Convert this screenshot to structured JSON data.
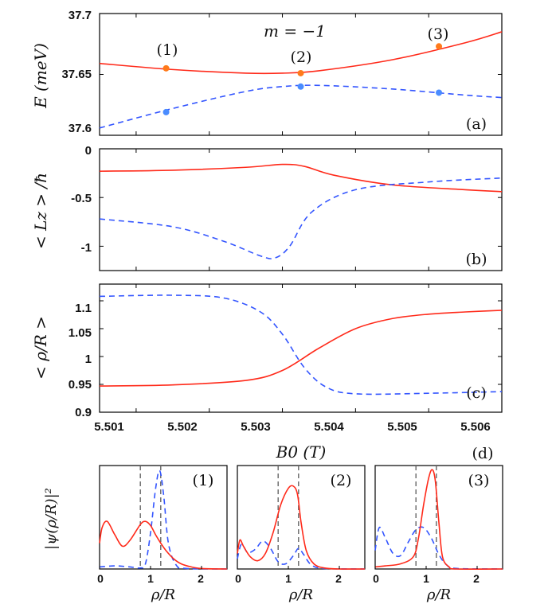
{
  "chart_data": [
    {
      "type": "line",
      "panel": "(a)",
      "ylabel": "E (meV)",
      "title": "m = −1",
      "xlim": [
        5.5005,
        5.506
      ],
      "ylim": [
        37.6,
        37.7
      ],
      "yticks": [
        "37.6",
        "37.65",
        "37.7"
      ],
      "series": [
        {
          "name": "solid",
          "color": "#ff2a1a",
          "style": "solid",
          "x": [
            5.5005,
            5.5015,
            5.5025,
            5.503,
            5.5035,
            5.5045,
            5.5055,
            5.506
          ],
          "y": [
            37.659,
            37.654,
            37.651,
            37.651,
            37.653,
            37.662,
            37.676,
            37.685
          ]
        },
        {
          "name": "dashed",
          "color": "#3355ff",
          "style": "dashed",
          "x": [
            5.5005,
            5.5015,
            5.5025,
            5.503,
            5.5035,
            5.5045,
            5.5055,
            5.506
          ],
          "y": [
            37.606,
            37.622,
            37.636,
            37.64,
            37.641,
            37.638,
            37.633,
            37.631
          ]
        }
      ],
      "markers": [
        {
          "label": "(1)",
          "x": 5.50141,
          "y_solid": 37.655,
          "y_dashed": 37.619
        },
        {
          "label": "(2)",
          "x": 5.50325,
          "y_solid": 37.651,
          "y_dashed": 37.64
        },
        {
          "label": "(3)",
          "x": 5.50514,
          "y_solid": 37.673,
          "y_dashed": 37.635
        }
      ]
    },
    {
      "type": "line",
      "panel": "(b)",
      "ylabel": "< L_z > / ħ",
      "xlim": [
        5.5005,
        5.506
      ],
      "ylim": [
        -1.25,
        0
      ],
      "yticks": [
        "-1",
        "-0.5",
        "0"
      ],
      "series": [
        {
          "name": "solid",
          "color": "#ff2a1a",
          "style": "solid",
          "x": [
            5.5005,
            5.5015,
            5.5025,
            5.503,
            5.5033,
            5.5037,
            5.5045,
            5.5055,
            5.506
          ],
          "y": [
            -0.23,
            -0.22,
            -0.19,
            -0.16,
            -0.18,
            -0.27,
            -0.37,
            -0.42,
            -0.44
          ]
        },
        {
          "name": "dashed",
          "color": "#3355ff",
          "style": "dashed",
          "x": [
            5.5005,
            5.5015,
            5.5022,
            5.5027,
            5.5029,
            5.5031,
            5.5034,
            5.504,
            5.505,
            5.506
          ],
          "y": [
            -0.72,
            -0.8,
            -0.95,
            -1.1,
            -1.12,
            -1.0,
            -0.65,
            -0.42,
            -0.34,
            -0.3
          ]
        }
      ]
    },
    {
      "type": "line",
      "panel": "(c)",
      "ylabel": "< ρ/R >",
      "xlabel": "B0 (T)",
      "xlim": [
        5.5005,
        5.506
      ],
      "ylim": [
        0.9,
        1.13
      ],
      "yticks": [
        "0.9",
        "0.95",
        "1",
        "1.05",
        "1.1"
      ],
      "xticks": [
        "5.501",
        "5.502",
        "5.503",
        "5.504",
        "5.505",
        "5.506"
      ],
      "series": [
        {
          "name": "solid",
          "color": "#ff2a1a",
          "style": "solid",
          "x": [
            5.5005,
            5.5015,
            5.5025,
            5.503,
            5.5035,
            5.504,
            5.5045,
            5.505,
            5.5055,
            5.506
          ],
          "y": [
            0.947,
            0.949,
            0.957,
            0.975,
            1.015,
            1.05,
            1.068,
            1.076,
            1.08,
            1.083
          ]
        },
        {
          "name": "dashed",
          "color": "#3355ff",
          "style": "dashed",
          "x": [
            5.5005,
            5.5015,
            5.5022,
            5.5027,
            5.503,
            5.5033,
            5.5036,
            5.504,
            5.505,
            5.506
          ],
          "y": [
            1.108,
            1.11,
            1.105,
            1.08,
            1.04,
            0.98,
            0.945,
            0.933,
            0.934,
            0.937
          ]
        }
      ]
    },
    {
      "type": "line",
      "panel": "(d)",
      "ylabel": "|ψ(ρ/R)|²",
      "xlabel": "ρ/R",
      "xlim": [
        0,
        2.5
      ],
      "xticks": [
        "0",
        "1",
        "2"
      ],
      "vlines": [
        0.8,
        1.2
      ],
      "subplots": [
        {
          "label": "(1)",
          "solid": {
            "x": [
              0,
              0.05,
              0.15,
              0.3,
              0.45,
              0.6,
              0.8,
              0.9,
              1.0,
              1.1,
              1.2,
              1.3,
              1.45,
              1.6,
              1.8,
              2.0,
              2.5
            ],
            "y": [
              0.25,
              0.4,
              0.46,
              0.33,
              0.22,
              0.28,
              0.43,
              0.46,
              0.42,
              0.33,
              0.25,
              0.18,
              0.1,
              0.05,
              0.02,
              0.005,
              0
            ]
          },
          "dashed": {
            "x": [
              0,
              0.3,
              0.6,
              0.8,
              0.9,
              1.0,
              1.1,
              1.18,
              1.26,
              1.35,
              1.5,
              1.7,
              2.5
            ],
            "y": [
              0.02,
              0.03,
              0.02,
              0.01,
              0.05,
              0.35,
              0.78,
              0.95,
              0.7,
              0.25,
              0.04,
              0.005,
              0
            ]
          }
        },
        {
          "label": "(2)",
          "solid": {
            "x": [
              0,
              0.05,
              0.12,
              0.25,
              0.4,
              0.55,
              0.7,
              0.85,
              1.0,
              1.1,
              1.18,
              1.25,
              1.35,
              1.5,
              1.7,
              2.0,
              2.5
            ],
            "y": [
              0.15,
              0.28,
              0.22,
              0.12,
              0.08,
              0.15,
              0.35,
              0.62,
              0.78,
              0.8,
              0.72,
              0.45,
              0.18,
              0.05,
              0.01,
              0,
              0
            ]
          },
          "dashed": {
            "x": [
              0,
              0.08,
              0.2,
              0.35,
              0.5,
              0.65,
              0.8,
              0.95,
              1.1,
              1.2,
              1.3,
              1.45,
              1.7,
              2.5
            ],
            "y": [
              0.1,
              0.24,
              0.16,
              0.19,
              0.27,
              0.2,
              0.07,
              0.05,
              0.13,
              0.2,
              0.14,
              0.04,
              0.005,
              0
            ]
          }
        },
        {
          "label": "(3)",
          "solid": {
            "x": [
              0,
              0.2,
              0.5,
              0.75,
              0.85,
              0.95,
              1.05,
              1.12,
              1.18,
              1.25,
              1.32,
              1.45,
              1.6,
              2.5
            ],
            "y": [
              0.02,
              0.03,
              0.05,
              0.12,
              0.3,
              0.62,
              0.88,
              0.96,
              0.85,
              0.45,
              0.12,
              0.02,
              0,
              0
            ]
          },
          "dashed": {
            "x": [
              0,
              0.08,
              0.2,
              0.35,
              0.5,
              0.65,
              0.8,
              0.95,
              1.1,
              1.25,
              1.4,
              1.6,
              2.5
            ],
            "y": [
              0.18,
              0.4,
              0.3,
              0.15,
              0.13,
              0.26,
              0.38,
              0.4,
              0.3,
              0.14,
              0.04,
              0.005,
              0
            ]
          }
        }
      ]
    }
  ],
  "labels": {
    "m_title": "m = −1",
    "ylabel_a": "E (meV)",
    "ylabel_b": "< Lz > /ħ",
    "ylabel_c": "< ρ/R >",
    "ylabel_d": "|ψ(ρ/R)|²",
    "xlabel_main": "B0 (T)",
    "xlabel_small": "ρ/R",
    "panel_a": "(a)",
    "panel_b": "(b)",
    "panel_c": "(c)",
    "panel_d": "(d)",
    "mk1": "(1)",
    "mk2": "(2)",
    "mk3": "(3)"
  },
  "colors": {
    "solid": "#ff2a1a",
    "dashed": "#3355ff",
    "dot_solid": "#ff7a1a",
    "dot_dashed": "#4a8cff",
    "vline": "#666666"
  }
}
